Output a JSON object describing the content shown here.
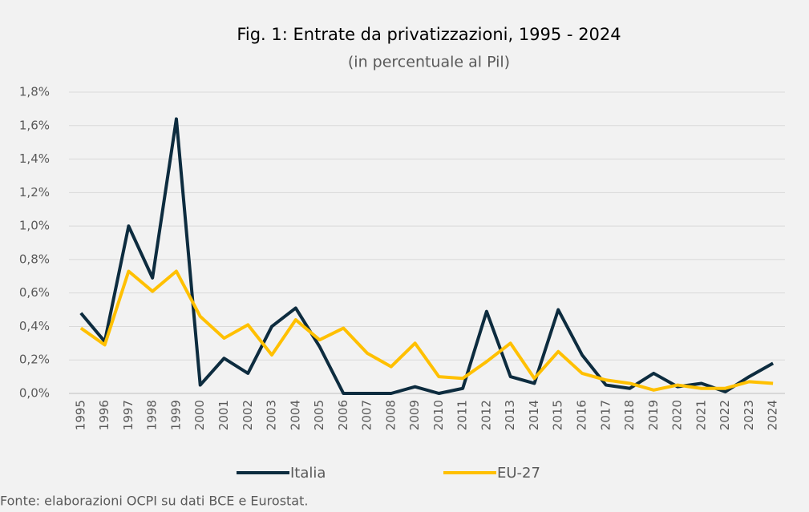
{
  "chart_data": {
    "type": "line",
    "title": "Fig. 1: Entrate da privatizzazioni, 1995 - 2024",
    "subtitle": "(in percentuale al Pil)",
    "source": "Fonte: elaborazioni OCPI su dati BCE e Eurostat.",
    "categories": [
      "1995",
      "1996",
      "1997",
      "1998",
      "1999",
      "2000",
      "2001",
      "2002",
      "2003",
      "2004",
      "2005",
      "2006",
      "2007",
      "2008",
      "2009",
      "2010",
      "2011",
      "2012",
      "2013",
      "2014",
      "2015",
      "2016",
      "2017",
      "2018",
      "2019",
      "2020",
      "2021",
      "2022",
      "2023",
      "2024"
    ],
    "series": [
      {
        "name": "Italia",
        "color": "#0d2c3f",
        "values": [
          0.48,
          0.31,
          1.0,
          0.69,
          1.64,
          0.05,
          0.21,
          0.12,
          0.4,
          0.51,
          0.28,
          0.0,
          0.0,
          0.0,
          0.04,
          0.0,
          0.03,
          0.49,
          0.1,
          0.06,
          0.5,
          0.23,
          0.05,
          0.03,
          0.12,
          0.04,
          0.06,
          0.01,
          0.1,
          0.18
        ]
      },
      {
        "name": "EU-27",
        "color": "#ffc000",
        "values": [
          0.39,
          0.29,
          0.73,
          0.61,
          0.73,
          0.46,
          0.33,
          0.41,
          0.23,
          0.44,
          0.32,
          0.39,
          0.24,
          0.16,
          0.3,
          0.1,
          0.09,
          0.19,
          0.3,
          0.09,
          0.25,
          0.12,
          0.08,
          0.06,
          0.02,
          0.05,
          0.03,
          0.03,
          0.07,
          0.06
        ]
      }
    ],
    "ylim": [
      0,
      1.8
    ],
    "yticks": [
      {
        "value": 0,
        "label": "0,0%"
      },
      {
        "value": 0.2,
        "label": "0,2%"
      },
      {
        "value": 0.4,
        "label": "0,4%"
      },
      {
        "value": 0.6,
        "label": "0,6%"
      },
      {
        "value": 0.8,
        "label": "0,8%"
      },
      {
        "value": 1.0,
        "label": "1,0%"
      },
      {
        "value": 1.2,
        "label": "1,2%"
      },
      {
        "value": 1.4,
        "label": "1,4%"
      },
      {
        "value": 1.6,
        "label": "1,6%"
      },
      {
        "value": 1.8,
        "label": "1,8%"
      }
    ],
    "grid": true,
    "legend": "bottom"
  }
}
